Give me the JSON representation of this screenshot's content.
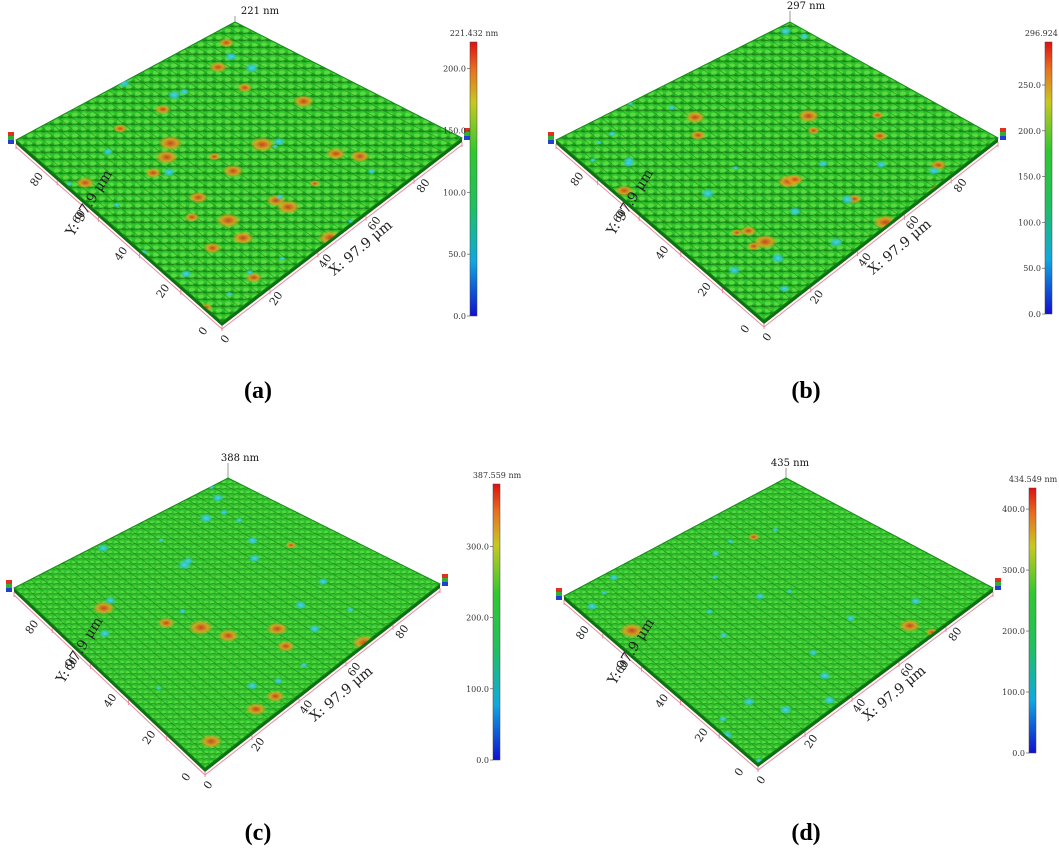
{
  "panels": [
    {
      "id": "a",
      "caption": "(a)",
      "peak_label": "221 nm",
      "colorbar": {
        "max_label": "221.432 nm",
        "ticks": [
          "200.0",
          "150.0",
          "100.0",
          "50.0",
          "0.0"
        ],
        "tick_values": [
          200,
          150,
          100,
          50,
          0
        ],
        "max_value": 221.432
      },
      "x_axis": {
        "title": "X: 97.9 μm",
        "ticks": [
          "0",
          "20",
          "40",
          "60",
          "80"
        ]
      },
      "y_axis": {
        "title": "Y: 97.9 μm",
        "ticks": [
          "0",
          "20",
          "40",
          "60",
          "80"
        ]
      },
      "roughness_level": 0.85
    },
    {
      "id": "b",
      "caption": "(b)",
      "peak_label": "297 nm",
      "colorbar": {
        "max_label": "296.924 nm",
        "ticks": [
          "250.0",
          "200.0",
          "150.0",
          "100.0",
          "50.0",
          "0.0"
        ],
        "tick_values": [
          250,
          200,
          150,
          100,
          50,
          0
        ],
        "max_value": 296.924
      },
      "x_axis": {
        "title": "X: 97.9 μm",
        "ticks": [
          "0",
          "20",
          "40",
          "60",
          "80"
        ]
      },
      "y_axis": {
        "title": "Y: 97.9 μm",
        "ticks": [
          "0",
          "20",
          "40",
          "60",
          "80"
        ]
      },
      "roughness_level": 0.6
    },
    {
      "id": "c",
      "caption": "(c)",
      "peak_label": "388 nm",
      "colorbar": {
        "max_label": "387.559 nm",
        "ticks": [
          "300.0",
          "200.0",
          "100.0",
          "0.0"
        ],
        "tick_values": [
          300,
          200,
          100,
          0
        ],
        "max_value": 387.559
      },
      "x_axis": {
        "title": "X: 97.9 μm",
        "ticks": [
          "0",
          "20",
          "40",
          "60",
          "80"
        ]
      },
      "y_axis": {
        "title": "Y: 97.9 μm",
        "ticks": [
          "0",
          "20",
          "40",
          "60",
          "80"
        ]
      },
      "roughness_level": 0.4
    },
    {
      "id": "d",
      "caption": "(d)",
      "peak_label": "435 nm",
      "colorbar": {
        "max_label": "434.549 nm",
        "ticks": [
          "400.0",
          "300.0",
          "200.0",
          "100.0",
          "0.0"
        ],
        "tick_values": [
          400,
          300,
          200,
          100,
          0
        ],
        "max_value": 434.549
      },
      "x_axis": {
        "title": "X: 97.9 μm",
        "ticks": [
          "0",
          "20",
          "40",
          "60",
          "80"
        ]
      },
      "y_axis": {
        "title": "Y: 97.9 μm",
        "ticks": [
          "0",
          "20",
          "40",
          "60",
          "80"
        ]
      },
      "roughness_level": 0.2
    }
  ],
  "colors": {
    "surface_green": "#2fc42a",
    "surface_dark": "#1c8c1c",
    "surface_light": "#7fe85a",
    "peak_red": "#e0301e",
    "peak_orange": "#e8a020",
    "valley_cyan": "#34c6d8",
    "axis_pink": "#e88aa0"
  }
}
